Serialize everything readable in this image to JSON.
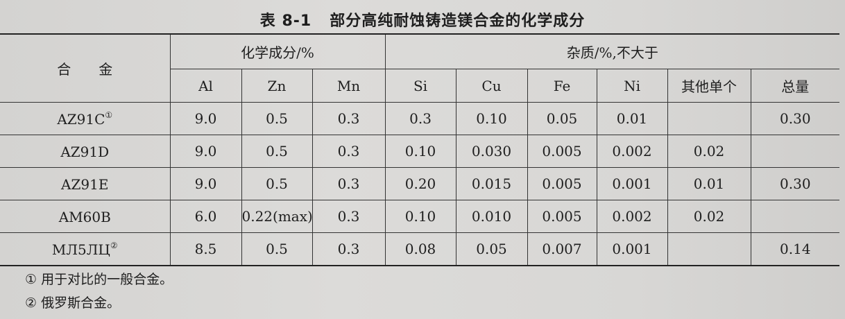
{
  "title": {
    "number": "表 8-1",
    "text": "部分高纯耐蚀铸造镁合金的化学成分"
  },
  "header": {
    "alloy": "合金",
    "composition_group": "化学成分/%",
    "impurity_group": "杂质/%,不大于",
    "columns": [
      "Al",
      "Zn",
      "Mn",
      "Si",
      "Cu",
      "Fe",
      "Ni",
      "其他单个",
      "总量"
    ]
  },
  "rows": [
    {
      "name": "AZ91C",
      "mark": "①",
      "values": [
        "9.0",
        "0.5",
        "0.3",
        "0.3",
        "0.10",
        "0.05",
        "0.01",
        "",
        "0.30"
      ]
    },
    {
      "name": "AZ91D",
      "mark": "",
      "values": [
        "9.0",
        "0.5",
        "0.3",
        "0.10",
        "0.030",
        "0.005",
        "0.002",
        "0.02",
        ""
      ]
    },
    {
      "name": "AZ91E",
      "mark": "",
      "values": [
        "9.0",
        "0.5",
        "0.3",
        "0.20",
        "0.015",
        "0.005",
        "0.001",
        "0.01",
        "0.30"
      ]
    },
    {
      "name": "AM60B",
      "mark": "",
      "values": [
        "6.0",
        "0.22(max)",
        "0.3",
        "0.10",
        "0.010",
        "0.005",
        "0.002",
        "0.02",
        ""
      ]
    },
    {
      "name": "МЛ5ЛЦ",
      "mark": "②",
      "values": [
        "8.5",
        "0.5",
        "0.3",
        "0.08",
        "0.05",
        "0.007",
        "0.001",
        "",
        "0.14"
      ]
    }
  ],
  "footnotes": [
    "① 用于对比的一般合金。",
    "② 俄罗斯合金。"
  ]
}
